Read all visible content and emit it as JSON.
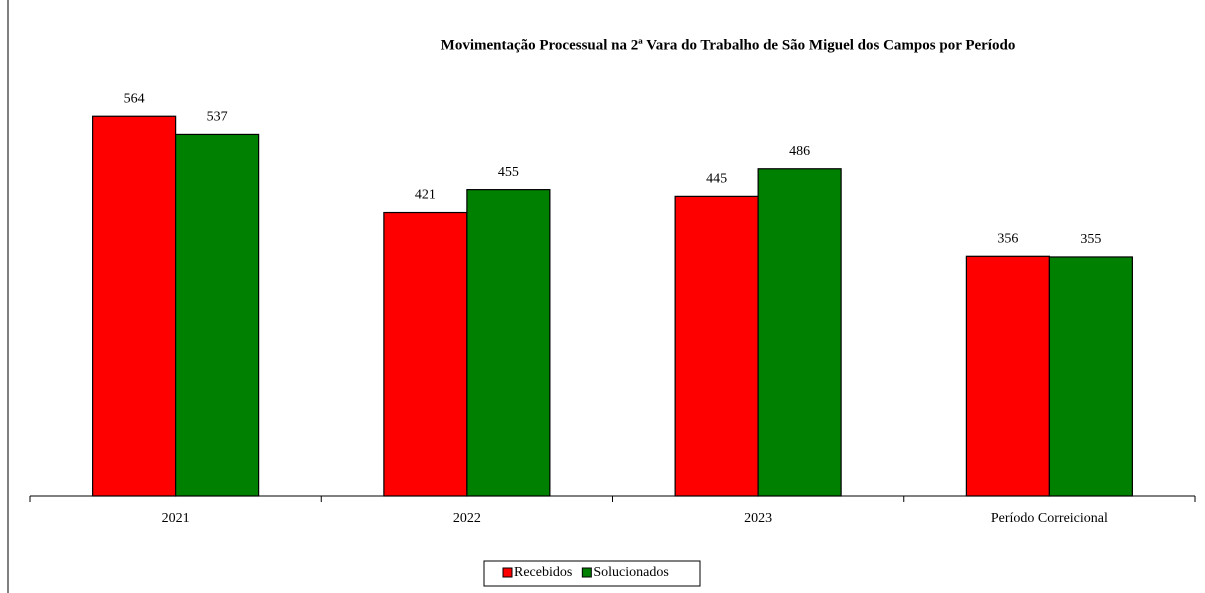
{
  "chart_data": {
    "type": "bar",
    "title": "Movimentação Processual na 2ª Vara do Trabalho de São Miguel dos Campos por Período",
    "categories": [
      "2021",
      "2022",
      "2023",
      "Período Correicional"
    ],
    "series": [
      {
        "name": "Recebidos",
        "color": "#ff0000",
        "values": [
          564,
          421,
          445,
          356
        ]
      },
      {
        "name": "Solucionados",
        "color": "#008000",
        "values": [
          537,
          455,
          486,
          355
        ]
      }
    ],
    "ylim": [
      0,
      600
    ]
  }
}
